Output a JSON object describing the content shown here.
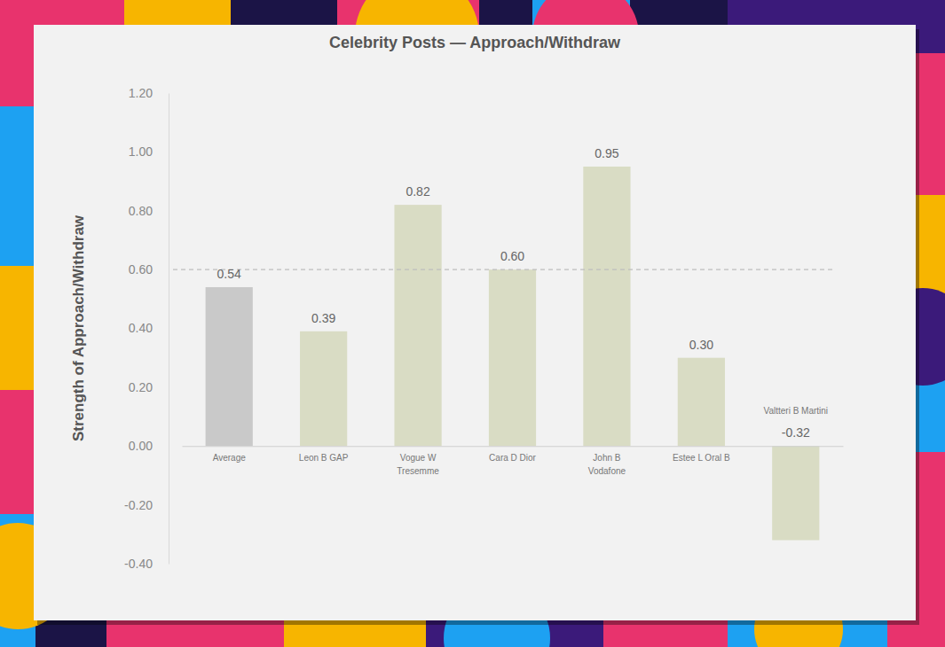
{
  "chart_data": {
    "type": "bar",
    "title": "Celebrity Posts — Approach/Withdraw",
    "y_label": "Strength of Approach/Withdraw",
    "categories": [
      "Average",
      "Leon B GAP",
      "Vogue W Tresemme",
      "Cara D Dior",
      "John B Vodafone",
      "Estee L Oral B",
      "Valtteri B Martini"
    ],
    "values": [
      0.54,
      0.39,
      0.82,
      0.6,
      0.95,
      0.3,
      -0.32
    ],
    "value_labels": [
      "0.54",
      "0.39",
      "0.82",
      "0.60",
      "0.95",
      "0.30",
      "-0.32"
    ],
    "colors": [
      "#c9c9c9",
      "#d9dcc4",
      "#d9dcc4",
      "#d9dcc4",
      "#d9dcc4",
      "#d9dcc4",
      "#d9dcc4"
    ],
    "reference_line": 0.6,
    "ylim": [
      -0.4,
      1.2
    ],
    "yticks": [
      {
        "value": -0.4,
        "label": "-0.40"
      },
      {
        "value": -0.2,
        "label": "-0.20"
      },
      {
        "value": 0,
        "label": "0.00"
      },
      {
        "value": 0.2,
        "label": "0.20"
      },
      {
        "value": 0.4,
        "label": "0.40"
      },
      {
        "value": 0.6,
        "label": "0.60"
      },
      {
        "value": 0.8,
        "label": "0.80"
      },
      {
        "value": 1.0,
        "label": "1.00"
      },
      {
        "value": 1.2,
        "label": "1.20"
      }
    ],
    "grid": false,
    "data_labels": true
  }
}
